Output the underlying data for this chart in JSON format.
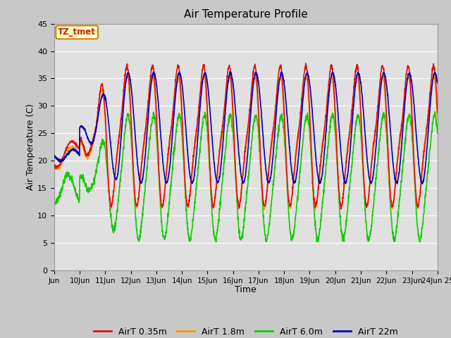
{
  "title": "Air Temperature Profile",
  "xlabel": "Time",
  "ylabel": "Air Temperature (C)",
  "ylim": [
    0,
    45
  ],
  "xlim": [
    0,
    15
  ],
  "fig_bg_color": "#c8c8c8",
  "plot_bg_color": "#e0e0e0",
  "grid_color": "white",
  "series": {
    "AirT 0.35m": {
      "color": "#dd1111",
      "linewidth": 1.2
    },
    "AirT 1.8m": {
      "color": "#ff9900",
      "linewidth": 1.2
    },
    "AirT 6.0m": {
      "color": "#11cc00",
      "linewidth": 1.2
    },
    "AirT 22m": {
      "color": "#0000bb",
      "linewidth": 1.2
    }
  },
  "xtick_labels": [
    "Jun",
    "10Jun",
    "11Jun",
    "12Jun",
    "13Jun",
    "14Jun",
    "15Jun",
    "16Jun",
    "17Jun",
    "18Jun",
    "19Jun",
    "20Jun",
    "21Jun",
    "22Jun",
    "23Jun",
    "24Jun 25"
  ],
  "annotation_text": "TZ_tmet",
  "annotation_bg": "#ffffcc",
  "annotation_border": "#cc8800",
  "annotation_text_color": "#cc2200"
}
